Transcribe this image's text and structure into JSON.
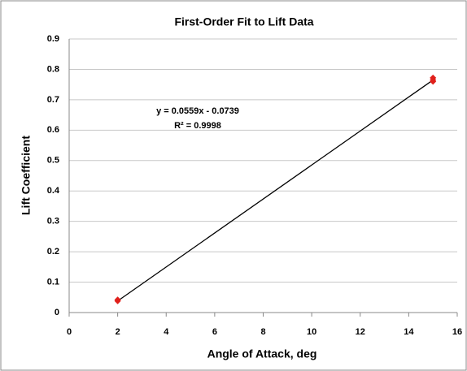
{
  "chart_data": {
    "type": "scatter",
    "title": "First-Order Fit to Lift Data",
    "x_label": "Angle of Attack, deg",
    "y_label": "Lift Coefficient",
    "x": [
      2,
      2,
      15,
      15,
      15
    ],
    "values": [
      0.038,
      0.042,
      0.772,
      0.765,
      0.76
    ],
    "color": "#e0201b",
    "trendline": {
      "x": [
        2,
        15
      ],
      "values": [
        0.038,
        0.765
      ],
      "color": "#000000"
    },
    "annotations": [
      "y = 0.0559x - 0.0739",
      "R² = 0.9998"
    ],
    "xlim": [
      0,
      16
    ],
    "xticks": [
      0,
      2,
      4,
      6,
      8,
      10,
      12,
      14,
      16
    ],
    "ylim": [
      0,
      0.9
    ],
    "yticks": [
      0,
      0.1,
      0.2,
      0.3,
      0.4,
      0.5,
      0.6,
      0.7,
      0.8,
      0.9
    ],
    "grid": true
  }
}
